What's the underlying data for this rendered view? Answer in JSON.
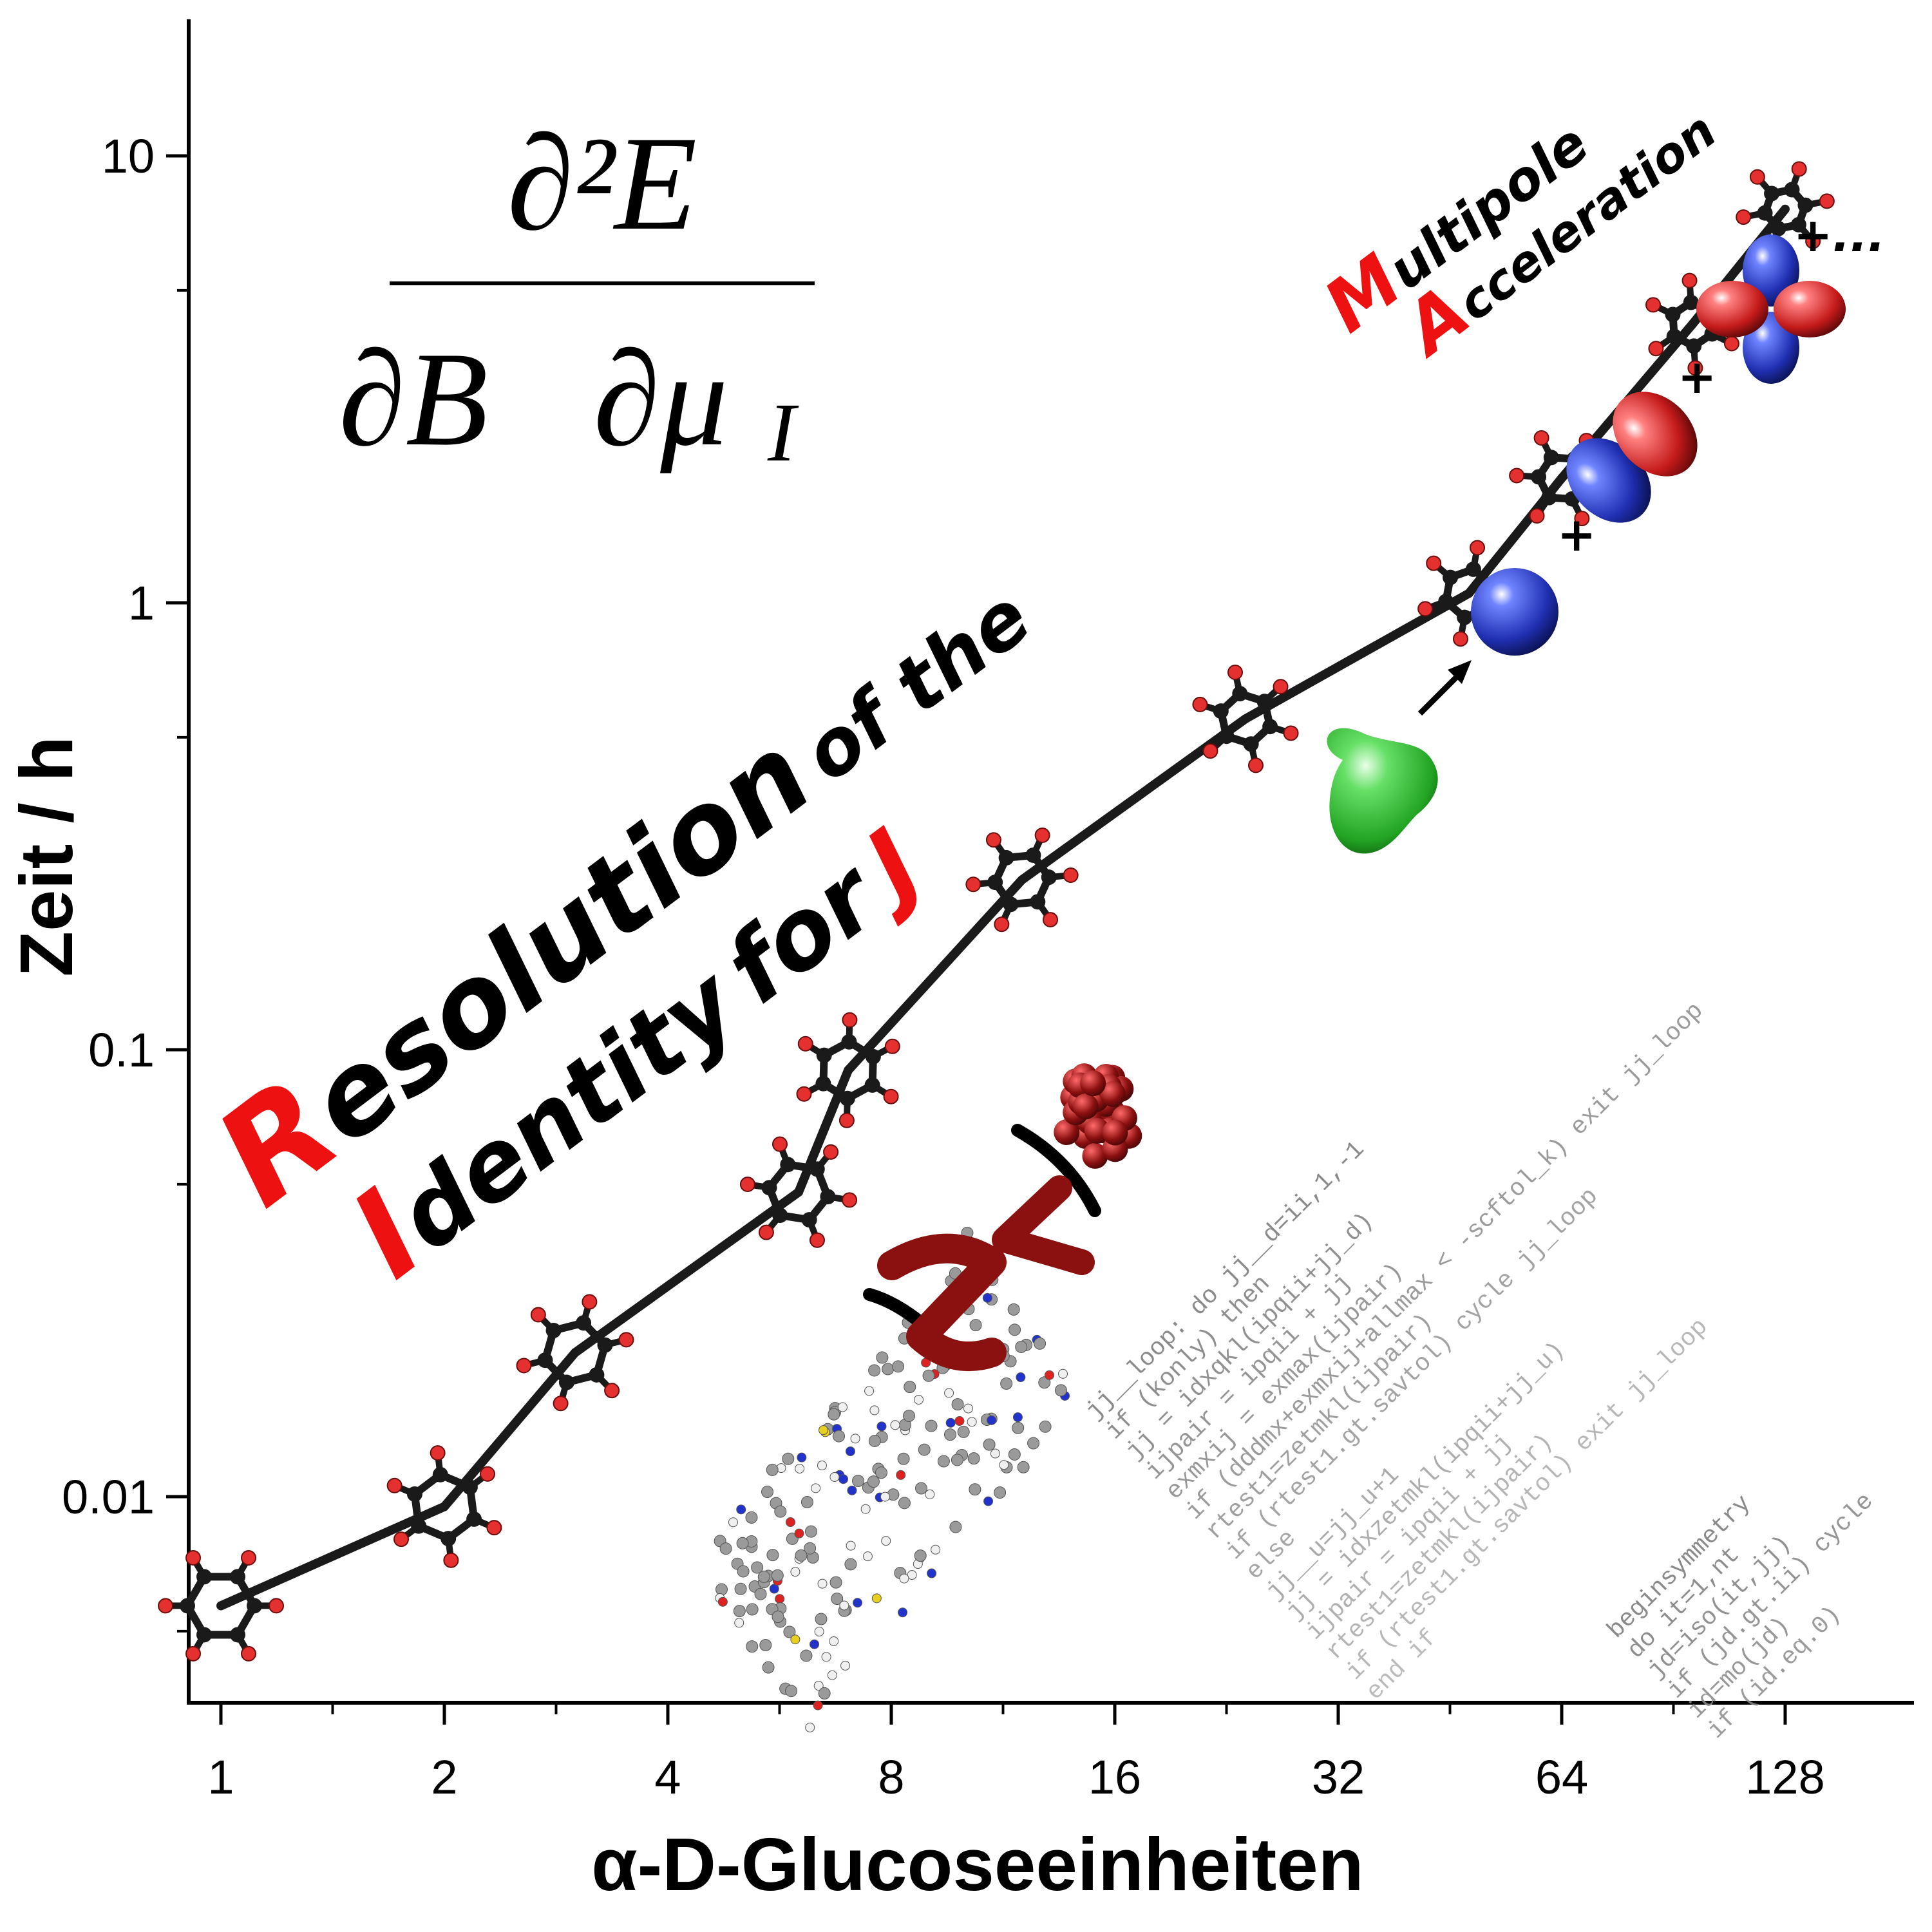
{
  "chart_data": {
    "type": "scatter",
    "x_scale": "log2",
    "y_scale": "log10",
    "xlabel": "α-D-Glucoseeinheiten",
    "ylabel": "Zeit / h",
    "x_ticks": [
      "1",
      "2",
      "4",
      "8",
      "16",
      "32",
      "64",
      "128"
    ],
    "y_ticks": [
      "0.01",
      "0.1",
      "1",
      "10"
    ],
    "xlim": [
      0.88,
      220
    ],
    "ylim": [
      0.0045,
      18
    ],
    "grid": false,
    "series": [
      {
        "marker": "glucose-chain",
        "points": [
          {
            "x": 1,
            "y": 0.0057
          },
          {
            "x": 2,
            "y": 0.0095
          },
          {
            "x": 3,
            "y": 0.021
          },
          {
            "x": 6,
            "y": 0.048
          },
          {
            "x": 7,
            "y": 0.09
          },
          {
            "x": 12,
            "y": 0.24
          },
          {
            "x": 24,
            "y": 0.55
          },
          {
            "x": 48,
            "y": 1.05
          },
          {
            "x": 64,
            "y": 1.9
          },
          {
            "x": 96,
            "y": 4.2
          },
          {
            "x": 128,
            "y": 7.6
          }
        ]
      }
    ],
    "annotations": {
      "formula": {
        "numerator": "∂²E",
        "denominator": "∂B⃗∂μ⃗",
        "subscript": "I"
      },
      "ri_label": {
        "line1_initial": "R",
        "line1_rest": "esolution",
        "line1_small": "of the",
        "line2_initial": "I",
        "line2_rest": "dentity",
        "line2_small": "for",
        "line2_last": "J"
      },
      "ma_label": {
        "line1_initial": "M",
        "line1_rest": "ultipole",
        "line2_initial": "A",
        "line2_rest": "cceleration"
      },
      "plus": "+",
      "plus_dots": "+...",
      "code_block_1": [
        "jj__loop:  do jj__d=ii,1,-1",
        "  if (konly) then",
        "    jj = idxqkl(ipqii+jj_d)",
        "    ijpair = ipqii + jj",
        "    exmxij = exmax(ijpair)",
        "    if (dddmx+exmxij+allmax < -scftol_k) exit jj_loop",
        "    rtest1=zetmkl(ijpair)",
        "    if (rtest1.gt.savtol) cycle jj_loop",
        "  else",
        "    jj__u=jj_u+1",
        "    jj = idxzetmkl(ipqii+jj_u)",
        "    ijpair = ipqii + jj",
        "    rtest1=zetmkl(ijpair)",
        "    if (rtest1.gt.savtol) exit jj_loop",
        "  end if"
      ],
      "code_block_2": [
        "beginsymmetry",
        "  do it=1,nt",
        "    jd=iso(it,jj)",
        "    if (jd.gt.ii) cycle",
        "    id=mo(jd)",
        "    if (id.eq.0)"
      ]
    },
    "colors": {
      "axis": "#000000",
      "carbon": "#1a1a1a",
      "oxygen": "#e53030",
      "highlight": "#ee1111",
      "monopole": "#2233bb",
      "lobe_positive": "#cc1f1f",
      "lobe_negative": "#1f2fb0",
      "density": "#33bb33",
      "cluster": "#8b1010",
      "code_text": "#8a8a8a"
    }
  }
}
